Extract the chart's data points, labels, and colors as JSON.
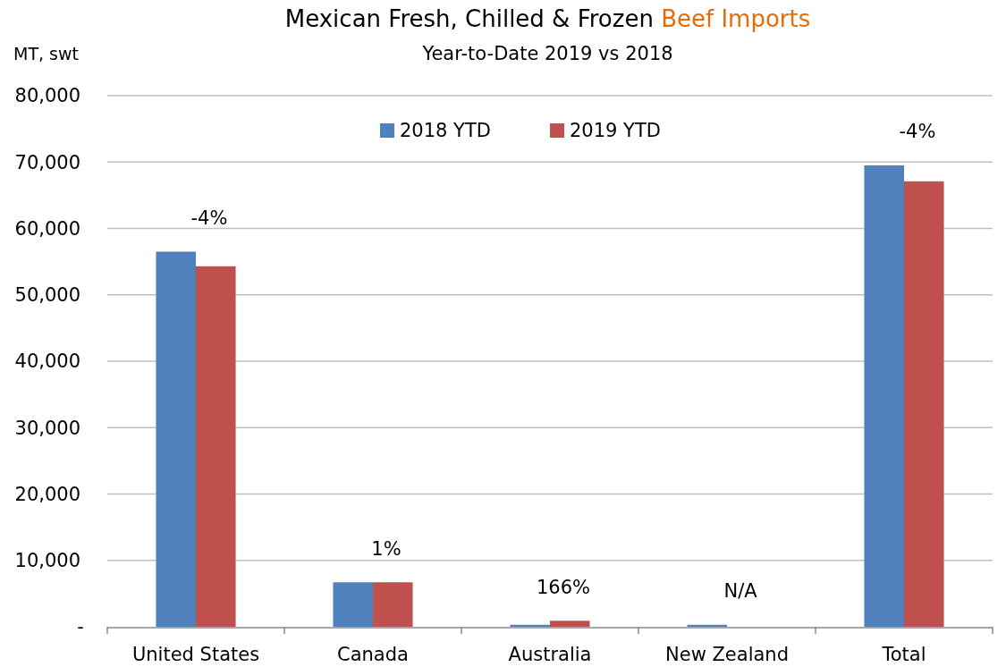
{
  "chart_data": {
    "type": "bar",
    "title": "Mexican Fresh, Chilled & Frozen Beef Imports",
    "subtitle": "Year-to-Date 2019 vs 2018",
    "ylabel": "MT, swt",
    "categories": [
      "United States",
      "Canada",
      "Australia",
      "New Zealand",
      "Total"
    ],
    "series": [
      {
        "name": "2018 YTD",
        "color": "#4f81bd",
        "values": [
          56500,
          6700,
          300,
          300,
          69500
        ]
      },
      {
        "name": "2019 YTD",
        "color": "#c0504d",
        "values": [
          54300,
          6700,
          900,
          0,
          67100
        ]
      }
    ],
    "ylim": [
      0,
      80000
    ],
    "yticks": [
      {
        "value": 0,
        "label": "-"
      },
      {
        "value": 10000,
        "label": "10,000"
      },
      {
        "value": 20000,
        "label": "20,000"
      },
      {
        "value": 30000,
        "label": "30,000"
      },
      {
        "value": 40000,
        "label": "40,000"
      },
      {
        "value": 50000,
        "label": "50,000"
      },
      {
        "value": 60000,
        "label": "60,000"
      },
      {
        "value": 70000,
        "label": "70,000"
      },
      {
        "value": 80000,
        "label": "80,000"
      }
    ],
    "grid": "y",
    "legend": "top",
    "annotations": [
      "-4%",
      "1%",
      "166%",
      "N/A",
      "-4%"
    ]
  }
}
